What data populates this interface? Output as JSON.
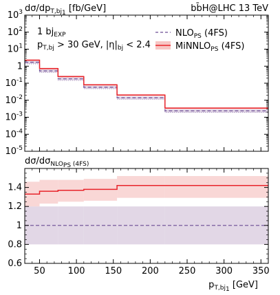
{
  "chart_data": [
    {
      "type": "line",
      "panel": "main",
      "title_left": "dσ/dp",
      "title_left_sub": "T,bj",
      "title_left_sub2": "1",
      "title_left_unit": " [fb/GeV]",
      "title_right": "bb̄H@LHC 13 TeV",
      "annotation_line1_base": "1 bj",
      "annotation_line1_sub": "EXP",
      "annotation_line2_base": "p",
      "annotation_line2_sub": "T,bj",
      "annotation_line2_rest": " > 30 GeV, |η|",
      "annotation_line2_sub2": "bj",
      "annotation_line2_tail": " < 2.4",
      "yscale": "log",
      "ylim": [
        1e-05,
        1000
      ],
      "xlim": [
        30,
        360
      ],
      "y_tick_labels": [
        {
          "b": "10",
          "e": "3"
        },
        {
          "b": "10",
          "e": "2"
        },
        {
          "b": "10",
          "e": "1"
        },
        {
          "b": "1",
          "e": ""
        },
        {
          "b": "10",
          "e": "-1"
        },
        {
          "b": "10",
          "e": "-2"
        },
        {
          "b": "10",
          "e": "-3"
        },
        {
          "b": "10",
          "e": "-4"
        },
        {
          "b": "10",
          "e": "-5"
        }
      ],
      "bin_edges": [
        30,
        50,
        75,
        110,
        155,
        220,
        360
      ],
      "series": [
        {
          "name": "NLO",
          "name_sub": "PS",
          "name_tail": " (4FS)",
          "color": "#6a4c93",
          "style": "dashed",
          "values": [
            1.7,
            0.53,
            0.18,
            0.058,
            0.014,
            0.0024
          ],
          "band_lo": [
            1.37,
            0.43,
            0.145,
            0.047,
            0.0112,
            0.0019
          ],
          "band_hi": [
            2.04,
            0.64,
            0.216,
            0.07,
            0.0168,
            0.0029
          ],
          "band_color": "#ddd0e2"
        },
        {
          "name": "MiNNLO",
          "name_sub": "PS",
          "name_tail": " (4FS)",
          "color": "#e8232a",
          "style": "solid",
          "values": [
            2.25,
            0.72,
            0.245,
            0.08,
            0.02,
            0.0034
          ],
          "band_lo": [
            2.0,
            0.64,
            0.22,
            0.072,
            0.018,
            0.003
          ],
          "band_hi": [
            2.55,
            0.82,
            0.28,
            0.091,
            0.023,
            0.0039
          ],
          "band_color": "#f7c6c4"
        }
      ]
    },
    {
      "type": "line",
      "panel": "ratio",
      "ylabel_base": "dσ/dσ",
      "ylabel_sub": "NLO",
      "ylabel_sub_sub": "PS",
      "ylabel_tail": " (4FS)",
      "xlabel_base": "p",
      "xlabel_sub": "T,bj",
      "xlabel_sub_sub": "1",
      "xlabel_unit": " [GeV]",
      "ylim": [
        0.6,
        1.6
      ],
      "xlim": [
        30,
        360
      ],
      "y_ticks": [
        "0.6",
        "0.8",
        "1",
        "1.2",
        "1.4"
      ],
      "x_ticks": [
        "50",
        "100",
        "150",
        "200",
        "250",
        "300",
        "350"
      ],
      "bin_edges": [
        30,
        50,
        75,
        110,
        155,
        220,
        360
      ],
      "series": [
        {
          "name": "NLO",
          "color": "#6a4c93",
          "style": "dashed",
          "values": [
            1.0,
            1.0,
            1.0,
            1.0,
            1.0,
            1.0
          ],
          "band_lo": [
            0.8,
            0.8,
            0.8,
            0.8,
            0.8,
            0.8
          ],
          "band_hi": [
            1.2,
            1.2,
            1.2,
            1.2,
            1.2,
            1.2
          ],
          "band_color": "#ddd0e2"
        },
        {
          "name": "MiNNLO",
          "color": "#e8232a",
          "style": "solid",
          "values": [
            1.33,
            1.36,
            1.37,
            1.38,
            1.42,
            1.42
          ],
          "band_lo": [
            1.2,
            1.23,
            1.25,
            1.26,
            1.29,
            1.29
          ],
          "band_hi": [
            1.46,
            1.48,
            1.48,
            1.49,
            1.52,
            1.52
          ],
          "band_color": "#f7c6c4"
        }
      ]
    }
  ]
}
